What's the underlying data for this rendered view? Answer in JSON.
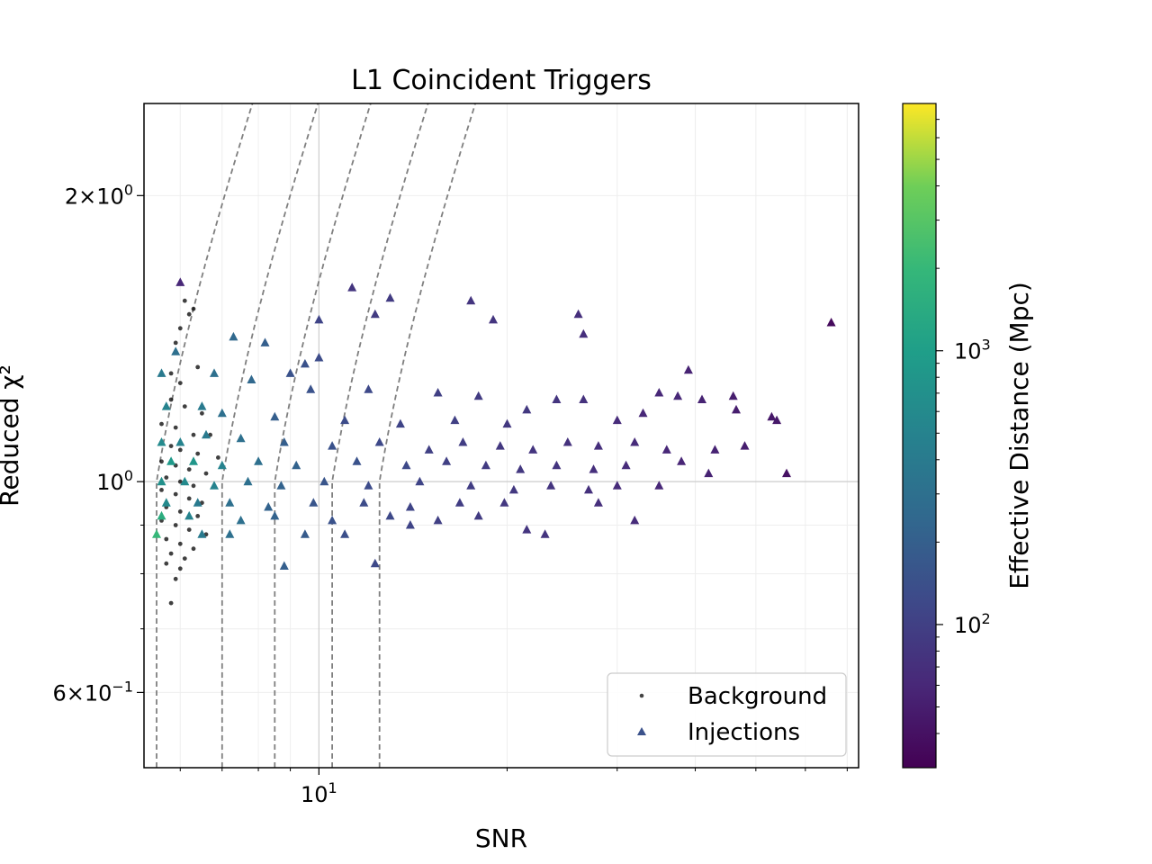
{
  "chart_data": {
    "type": "scatter",
    "title": "L1 Coincident Triggers",
    "xlabel": "SNR",
    "ylabel": "Reduced χ²",
    "x_scale": "log",
    "y_scale": "log",
    "xlim": [
      5.25,
      73
    ],
    "ylim": [
      0.5,
      2.5
    ],
    "grid": true,
    "legend_position": "lower-right",
    "x_major_ticks": [
      {
        "value": 10,
        "base": "10",
        "exp": "1"
      }
    ],
    "y_major_ticks": [
      {
        "value": 2.0,
        "mant": "2",
        "base": "10",
        "exp": "0"
      },
      {
        "value": 1.0,
        "mant": "",
        "base": "10",
        "exp": "0"
      },
      {
        "value": 0.6,
        "mant": "6",
        "base": "10",
        "exp": "−1"
      }
    ],
    "series": [
      {
        "name": "Background",
        "marker": "point",
        "color": "#000000"
      },
      {
        "name": "Injections",
        "marker": "triangle",
        "color": "#3b528b"
      }
    ],
    "colorbar": {
      "label": "Effective Distance (Mpc)",
      "scale": "log",
      "range": [
        30,
        8000
      ],
      "colormap": "viridis",
      "ticks": [
        {
          "value": 100,
          "base": "10",
          "exp": "2"
        },
        {
          "value": 1000,
          "base": "10",
          "exp": "3"
        }
      ]
    },
    "contour_color": "#7f7f7f",
    "contours": [
      {
        "snr_threshold": 5.5
      },
      {
        "snr_threshold": 7.0
      },
      {
        "snr_threshold": 8.5
      },
      {
        "snr_threshold": 10.5
      },
      {
        "snr_threshold": 12.5
      }
    ],
    "background_points": [
      {
        "x": 6.1,
        "y": 1.55
      },
      {
        "x": 6.3,
        "y": 1.52
      },
      {
        "x": 6.2,
        "y": 1.5
      },
      {
        "x": 6.0,
        "y": 1.45
      },
      {
        "x": 5.9,
        "y": 1.4
      },
      {
        "x": 6.4,
        "y": 1.32
      },
      {
        "x": 5.8,
        "y": 1.3
      },
      {
        "x": 6.0,
        "y": 1.27
      },
      {
        "x": 5.8,
        "y": 1.22
      },
      {
        "x": 6.1,
        "y": 1.2
      },
      {
        "x": 6.5,
        "y": 1.18
      },
      {
        "x": 5.6,
        "y": 1.15
      },
      {
        "x": 5.9,
        "y": 1.14
      },
      {
        "x": 6.3,
        "y": 1.12
      },
      {
        "x": 6.7,
        "y": 1.12
      },
      {
        "x": 5.6,
        "y": 1.1
      },
      {
        "x": 5.8,
        "y": 1.09
      },
      {
        "x": 6.0,
        "y": 1.08
      },
      {
        "x": 6.4,
        "y": 1.07
      },
      {
        "x": 6.9,
        "y": 1.06
      },
      {
        "x": 5.6,
        "y": 1.05
      },
      {
        "x": 5.9,
        "y": 1.04
      },
      {
        "x": 6.2,
        "y": 1.03
      },
      {
        "x": 6.6,
        "y": 1.02
      },
      {
        "x": 5.7,
        "y": 1.01
      },
      {
        "x": 6.0,
        "y": 1.0
      },
      {
        "x": 6.3,
        "y": 0.99
      },
      {
        "x": 6.8,
        "y": 0.99
      },
      {
        "x": 5.6,
        "y": 0.98
      },
      {
        "x": 5.9,
        "y": 0.97
      },
      {
        "x": 6.2,
        "y": 0.96
      },
      {
        "x": 6.5,
        "y": 0.95
      },
      {
        "x": 5.7,
        "y": 0.94
      },
      {
        "x": 6.0,
        "y": 0.93
      },
      {
        "x": 6.4,
        "y": 0.92
      },
      {
        "x": 5.6,
        "y": 0.91
      },
      {
        "x": 5.9,
        "y": 0.9
      },
      {
        "x": 6.2,
        "y": 0.89
      },
      {
        "x": 6.6,
        "y": 0.88
      },
      {
        "x": 5.7,
        "y": 0.87
      },
      {
        "x": 6.0,
        "y": 0.86
      },
      {
        "x": 6.3,
        "y": 0.85
      },
      {
        "x": 5.8,
        "y": 0.84
      },
      {
        "x": 6.1,
        "y": 0.83
      },
      {
        "x": 5.7,
        "y": 0.82
      },
      {
        "x": 6.0,
        "y": 0.81
      },
      {
        "x": 5.9,
        "y": 0.79
      },
      {
        "x": 5.8,
        "y": 0.745
      }
    ],
    "injection_points": [
      {
        "x": 6.0,
        "y": 1.62,
        "d": 60
      },
      {
        "x": 11.3,
        "y": 1.6,
        "d": 80
      },
      {
        "x": 13.0,
        "y": 1.56,
        "d": 90
      },
      {
        "x": 17.5,
        "y": 1.55,
        "d": 80
      },
      {
        "x": 66.0,
        "y": 1.47,
        "d": 35
      },
      {
        "x": 10.0,
        "y": 1.48,
        "d": 110
      },
      {
        "x": 12.3,
        "y": 1.5,
        "d": 90
      },
      {
        "x": 19.0,
        "y": 1.48,
        "d": 80
      },
      {
        "x": 26.0,
        "y": 1.5,
        "d": 70
      },
      {
        "x": 26.5,
        "y": 1.43,
        "d": 70
      },
      {
        "x": 5.9,
        "y": 1.37,
        "d": 300
      },
      {
        "x": 7.3,
        "y": 1.42,
        "d": 250
      },
      {
        "x": 8.2,
        "y": 1.4,
        "d": 200
      },
      {
        "x": 9.5,
        "y": 1.33,
        "d": 150
      },
      {
        "x": 10.0,
        "y": 1.35,
        "d": 130
      },
      {
        "x": 9.0,
        "y": 1.3,
        "d": 150
      },
      {
        "x": 39.0,
        "y": 1.31,
        "d": 55
      },
      {
        "x": 5.6,
        "y": 1.3,
        "d": 400
      },
      {
        "x": 6.8,
        "y": 1.3,
        "d": 300
      },
      {
        "x": 7.8,
        "y": 1.28,
        "d": 250
      },
      {
        "x": 9.7,
        "y": 1.25,
        "d": 150
      },
      {
        "x": 12.0,
        "y": 1.25,
        "d": 120
      },
      {
        "x": 15.5,
        "y": 1.24,
        "d": 100
      },
      {
        "x": 18.0,
        "y": 1.23,
        "d": 90
      },
      {
        "x": 24.0,
        "y": 1.22,
        "d": 80
      },
      {
        "x": 26.5,
        "y": 1.22,
        "d": 75
      },
      {
        "x": 35.0,
        "y": 1.24,
        "d": 60
      },
      {
        "x": 37.5,
        "y": 1.23,
        "d": 60
      },
      {
        "x": 41.0,
        "y": 1.22,
        "d": 55
      },
      {
        "x": 46.0,
        "y": 1.23,
        "d": 50
      },
      {
        "x": 53.0,
        "y": 1.17,
        "d": 45
      },
      {
        "x": 5.7,
        "y": 1.2,
        "d": 500
      },
      {
        "x": 6.5,
        "y": 1.2,
        "d": 400
      },
      {
        "x": 7.0,
        "y": 1.18,
        "d": 300
      },
      {
        "x": 8.5,
        "y": 1.17,
        "d": 200
      },
      {
        "x": 11.0,
        "y": 1.16,
        "d": 130
      },
      {
        "x": 13.5,
        "y": 1.15,
        "d": 110
      },
      {
        "x": 16.5,
        "y": 1.16,
        "d": 100
      },
      {
        "x": 20.0,
        "y": 1.15,
        "d": 85
      },
      {
        "x": 21.5,
        "y": 1.19,
        "d": 85
      },
      {
        "x": 30.0,
        "y": 1.16,
        "d": 65
      },
      {
        "x": 33.0,
        "y": 1.18,
        "d": 60
      },
      {
        "x": 46.5,
        "y": 1.19,
        "d": 50
      },
      {
        "x": 54.0,
        "y": 1.16,
        "d": 45
      },
      {
        "x": 5.6,
        "y": 1.1,
        "d": 600
      },
      {
        "x": 6.0,
        "y": 1.1,
        "d": 500
      },
      {
        "x": 6.6,
        "y": 1.12,
        "d": 400
      },
      {
        "x": 7.5,
        "y": 1.11,
        "d": 300
      },
      {
        "x": 8.8,
        "y": 1.1,
        "d": 200
      },
      {
        "x": 10.5,
        "y": 1.09,
        "d": 150
      },
      {
        "x": 12.5,
        "y": 1.1,
        "d": 120
      },
      {
        "x": 15.0,
        "y": 1.08,
        "d": 100
      },
      {
        "x": 17.0,
        "y": 1.1,
        "d": 95
      },
      {
        "x": 19.5,
        "y": 1.09,
        "d": 85
      },
      {
        "x": 22.0,
        "y": 1.08,
        "d": 80
      },
      {
        "x": 25.0,
        "y": 1.1,
        "d": 75
      },
      {
        "x": 28.0,
        "y": 1.09,
        "d": 70
      },
      {
        "x": 32.0,
        "y": 1.1,
        "d": 65
      },
      {
        "x": 36.0,
        "y": 1.08,
        "d": 60
      },
      {
        "x": 43.0,
        "y": 1.08,
        "d": 55
      },
      {
        "x": 48.0,
        "y": 1.09,
        "d": 50
      },
      {
        "x": 5.8,
        "y": 1.05,
        "d": 900
      },
      {
        "x": 6.3,
        "y": 1.05,
        "d": 800
      },
      {
        "x": 7.0,
        "y": 1.04,
        "d": 500
      },
      {
        "x": 8.0,
        "y": 1.05,
        "d": 300
      },
      {
        "x": 9.2,
        "y": 1.04,
        "d": 220
      },
      {
        "x": 11.5,
        "y": 1.05,
        "d": 150
      },
      {
        "x": 13.8,
        "y": 1.04,
        "d": 120
      },
      {
        "x": 16.0,
        "y": 1.05,
        "d": 100
      },
      {
        "x": 18.5,
        "y": 1.04,
        "d": 90
      },
      {
        "x": 21.0,
        "y": 1.03,
        "d": 85
      },
      {
        "x": 24.0,
        "y": 1.04,
        "d": 80
      },
      {
        "x": 27.5,
        "y": 1.03,
        "d": 70
      },
      {
        "x": 31.0,
        "y": 1.04,
        "d": 65
      },
      {
        "x": 38.0,
        "y": 1.05,
        "d": 58
      },
      {
        "x": 42.0,
        "y": 1.02,
        "d": 55
      },
      {
        "x": 56.0,
        "y": 1.02,
        "d": 40
      },
      {
        "x": 5.6,
        "y": 1.0,
        "d": 700
      },
      {
        "x": 6.1,
        "y": 1.0,
        "d": 600
      },
      {
        "x": 6.8,
        "y": 0.99,
        "d": 500
      },
      {
        "x": 7.7,
        "y": 1.0,
        "d": 300
      },
      {
        "x": 8.7,
        "y": 0.99,
        "d": 220
      },
      {
        "x": 10.2,
        "y": 1.0,
        "d": 160
      },
      {
        "x": 12.0,
        "y": 0.99,
        "d": 130
      },
      {
        "x": 14.5,
        "y": 1.0,
        "d": 110
      },
      {
        "x": 17.5,
        "y": 0.99,
        "d": 95
      },
      {
        "x": 20.5,
        "y": 0.98,
        "d": 85
      },
      {
        "x": 23.5,
        "y": 0.99,
        "d": 80
      },
      {
        "x": 27.0,
        "y": 0.98,
        "d": 72
      },
      {
        "x": 30.0,
        "y": 0.99,
        "d": 66
      },
      {
        "x": 35.0,
        "y": 0.99,
        "d": 60
      },
      {
        "x": 5.7,
        "y": 0.95,
        "d": 600
      },
      {
        "x": 6.4,
        "y": 0.95,
        "d": 400
      },
      {
        "x": 7.2,
        "y": 0.95,
        "d": 300
      },
      {
        "x": 8.3,
        "y": 0.94,
        "d": 220
      },
      {
        "x": 9.8,
        "y": 0.95,
        "d": 160
      },
      {
        "x": 11.8,
        "y": 0.95,
        "d": 130
      },
      {
        "x": 14.0,
        "y": 0.94,
        "d": 110
      },
      {
        "x": 16.8,
        "y": 0.95,
        "d": 95
      },
      {
        "x": 19.8,
        "y": 0.95,
        "d": 85
      },
      {
        "x": 28.0,
        "y": 0.95,
        "d": 70
      },
      {
        "x": 5.6,
        "y": 0.92,
        "d": 1500
      },
      {
        "x": 6.2,
        "y": 0.92,
        "d": 500
      },
      {
        "x": 7.5,
        "y": 0.91,
        "d": 300
      },
      {
        "x": 8.5,
        "y": 0.92,
        "d": 220
      },
      {
        "x": 10.5,
        "y": 0.91,
        "d": 150
      },
      {
        "x": 13.0,
        "y": 0.92,
        "d": 120
      },
      {
        "x": 15.5,
        "y": 0.91,
        "d": 100
      },
      {
        "x": 18.0,
        "y": 0.92,
        "d": 90
      },
      {
        "x": 32.0,
        "y": 0.91,
        "d": 65
      },
      {
        "x": 5.5,
        "y": 0.88,
        "d": 2000
      },
      {
        "x": 6.5,
        "y": 0.88,
        "d": 400
      },
      {
        "x": 7.2,
        "y": 0.88,
        "d": 300
      },
      {
        "x": 9.5,
        "y": 0.88,
        "d": 180
      },
      {
        "x": 11.0,
        "y": 0.88,
        "d": 140
      },
      {
        "x": 14.0,
        "y": 0.9,
        "d": 110
      },
      {
        "x": 21.5,
        "y": 0.89,
        "d": 80
      },
      {
        "x": 23.0,
        "y": 0.88,
        "d": 78
      },
      {
        "x": 8.8,
        "y": 0.815,
        "d": 200
      },
      {
        "x": 12.3,
        "y": 0.82,
        "d": 120
      }
    ],
    "legend": [
      {
        "label": "Background"
      },
      {
        "label": "Injections"
      }
    ]
  }
}
